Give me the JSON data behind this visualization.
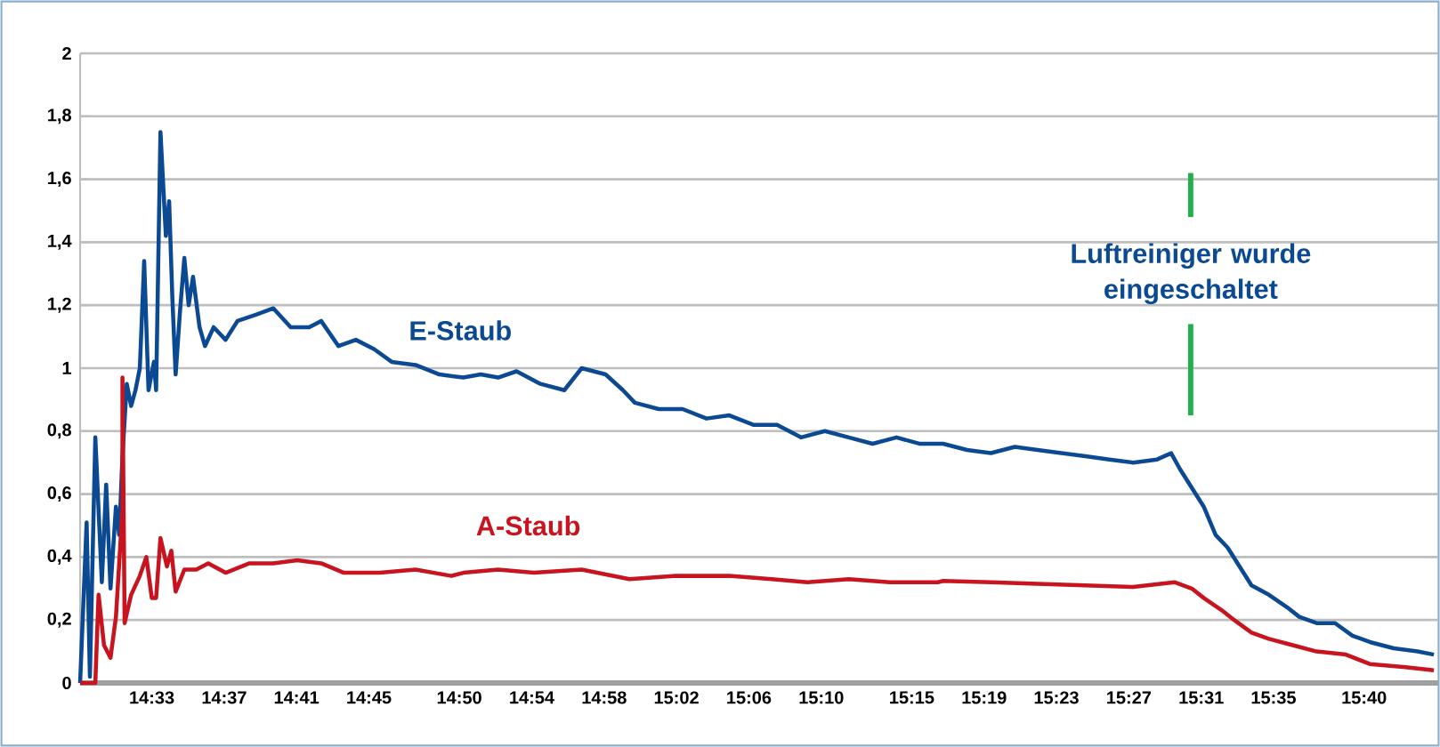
{
  "chart_data": {
    "type": "line",
    "xlim": [
      14.484,
      15.735
    ],
    "ylim": [
      0,
      2
    ],
    "xticks": [
      {
        "value": 14.55,
        "label": "14:33"
      },
      {
        "value": 14.6167,
        "label": "14:37"
      },
      {
        "value": 14.6833,
        "label": "14:41"
      },
      {
        "value": 14.75,
        "label": "14:45"
      },
      {
        "value": 14.8333,
        "label": "14:50"
      },
      {
        "value": 14.9,
        "label": "14:54"
      },
      {
        "value": 14.9667,
        "label": "14:58"
      },
      {
        "value": 15.0333,
        "label": "15:02"
      },
      {
        "value": 15.1,
        "label": "15:06"
      },
      {
        "value": 15.1667,
        "label": "15:10"
      },
      {
        "value": 15.25,
        "label": "15:15"
      },
      {
        "value": 15.3167,
        "label": "15:19"
      },
      {
        "value": 15.3833,
        "label": "15:23"
      },
      {
        "value": 15.45,
        "label": "15:27"
      },
      {
        "value": 15.5167,
        "label": "15:31"
      },
      {
        "value": 15.5833,
        "label": "15:35"
      },
      {
        "value": 15.6667,
        "label": "15:40"
      }
    ],
    "yticks": [
      0,
      {
        "value": 0.2,
        "label": "0,2"
      },
      {
        "value": 0.4,
        "label": "0,4"
      },
      {
        "value": 0.6,
        "label": "0,6"
      },
      {
        "value": 0.8,
        "label": "0,8"
      },
      1,
      {
        "value": 1.2,
        "label": "1,2"
      },
      {
        "value": 1.4,
        "label": "1,4"
      },
      {
        "value": 1.6,
        "label": "1,6"
      },
      {
        "value": 1.8,
        "label": "1,8"
      },
      2
    ],
    "grid": "y",
    "legend": false,
    "marker": "none",
    "line_style": "solid",
    "series": [
      {
        "name": "E-Staub",
        "color": "#0b4a92",
        "x": [
          14.484,
          14.49,
          14.493,
          14.498,
          14.504,
          14.508,
          14.512,
          14.517,
          14.52,
          14.523,
          14.527,
          14.531,
          14.535,
          14.539,
          14.543,
          14.547,
          14.552,
          14.554,
          14.558,
          14.563,
          14.566,
          14.569,
          14.572,
          14.576,
          14.58,
          14.584,
          14.588,
          14.594,
          14.599,
          14.607,
          14.618,
          14.629,
          14.646,
          14.662,
          14.678,
          14.695,
          14.706,
          14.722,
          14.738,
          14.755,
          14.771,
          14.793,
          14.815,
          14.837,
          14.853,
          14.869,
          14.886,
          14.908,
          14.93,
          14.946,
          14.968,
          14.984,
          14.995,
          15.017,
          15.039,
          15.061,
          15.082,
          15.104,
          15.126,
          15.148,
          15.17,
          15.192,
          15.214,
          15.236,
          15.257,
          15.279,
          15.301,
          15.323,
          15.345,
          15.366,
          15.388,
          15.41,
          15.432,
          15.454,
          15.476,
          15.489,
          15.497,
          15.508,
          15.519,
          15.53,
          15.541,
          15.552,
          15.563,
          15.579,
          15.596,
          15.607,
          15.623,
          15.64,
          15.656,
          15.672,
          15.694,
          15.716,
          15.731
        ],
        "values": [
          0,
          0.51,
          0.02,
          0.78,
          0.32,
          0.63,
          0.3,
          0.56,
          0.47,
          0.72,
          0.95,
          0.88,
          0.93,
          1.0,
          1.34,
          0.93,
          1.02,
          0.93,
          1.75,
          1.42,
          1.53,
          1.22,
          0.98,
          1.18,
          1.35,
          1.2,
          1.29,
          1.13,
          1.07,
          1.13,
          1.09,
          1.15,
          1.17,
          1.19,
          1.13,
          1.13,
          1.15,
          1.07,
          1.09,
          1.06,
          1.02,
          1.01,
          0.98,
          0.97,
          0.98,
          0.97,
          0.99,
          0.95,
          0.93,
          1.0,
          0.98,
          0.93,
          0.89,
          0.87,
          0.87,
          0.84,
          0.85,
          0.82,
          0.82,
          0.78,
          0.8,
          0.78,
          0.76,
          0.78,
          0.76,
          0.76,
          0.74,
          0.73,
          0.75,
          0.74,
          0.73,
          0.72,
          0.71,
          0.7,
          0.71,
          0.73,
          0.68,
          0.62,
          0.56,
          0.47,
          0.43,
          0.37,
          0.31,
          0.28,
          0.24,
          0.21,
          0.19,
          0.19,
          0.15,
          0.13,
          0.11,
          0.1,
          0.09
        ]
      },
      {
        "name": "A-Staub",
        "color": "#c8141e",
        "x": [
          14.484,
          14.498,
          14.501,
          14.506,
          14.512,
          14.517,
          14.523,
          14.523,
          14.525,
          14.531,
          14.539,
          14.545,
          14.55,
          14.554,
          14.558,
          14.564,
          14.568,
          14.572,
          14.58,
          14.591,
          14.602,
          14.618,
          14.64,
          14.662,
          14.684,
          14.706,
          14.727,
          14.76,
          14.793,
          14.826,
          14.837,
          14.869,
          14.902,
          14.946,
          14.99,
          15.033,
          15.082,
          15.121,
          15.154,
          15.192,
          15.23,
          15.274,
          15.279,
          15.323,
          15.366,
          15.41,
          15.454,
          15.492,
          15.508,
          15.519,
          15.536,
          15.547,
          15.563,
          15.579,
          15.601,
          15.623,
          15.65,
          15.672,
          15.705,
          15.731
        ],
        "values": [
          0,
          0,
          0.28,
          0.12,
          0.08,
          0.21,
          0.55,
          0.97,
          0.19,
          0.28,
          0.34,
          0.4,
          0.27,
          0.27,
          0.46,
          0.37,
          0.42,
          0.29,
          0.36,
          0.36,
          0.38,
          0.35,
          0.38,
          0.38,
          0.39,
          0.38,
          0.35,
          0.35,
          0.36,
          0.34,
          0.35,
          0.36,
          0.35,
          0.36,
          0.33,
          0.34,
          0.34,
          0.33,
          0.32,
          0.33,
          0.32,
          0.32,
          0.324,
          0.32,
          0.315,
          0.31,
          0.305,
          0.32,
          0.3,
          0.27,
          0.23,
          0.2,
          0.16,
          0.14,
          0.12,
          0.1,
          0.09,
          0.06,
          0.05,
          0.04
        ]
      }
    ],
    "ref_lines": [
      {
        "axis": "x",
        "value": 15.507,
        "label": "Luftreiniger  wurde eingeschaltet",
        "color": "#22b04b"
      }
    ]
  }
}
